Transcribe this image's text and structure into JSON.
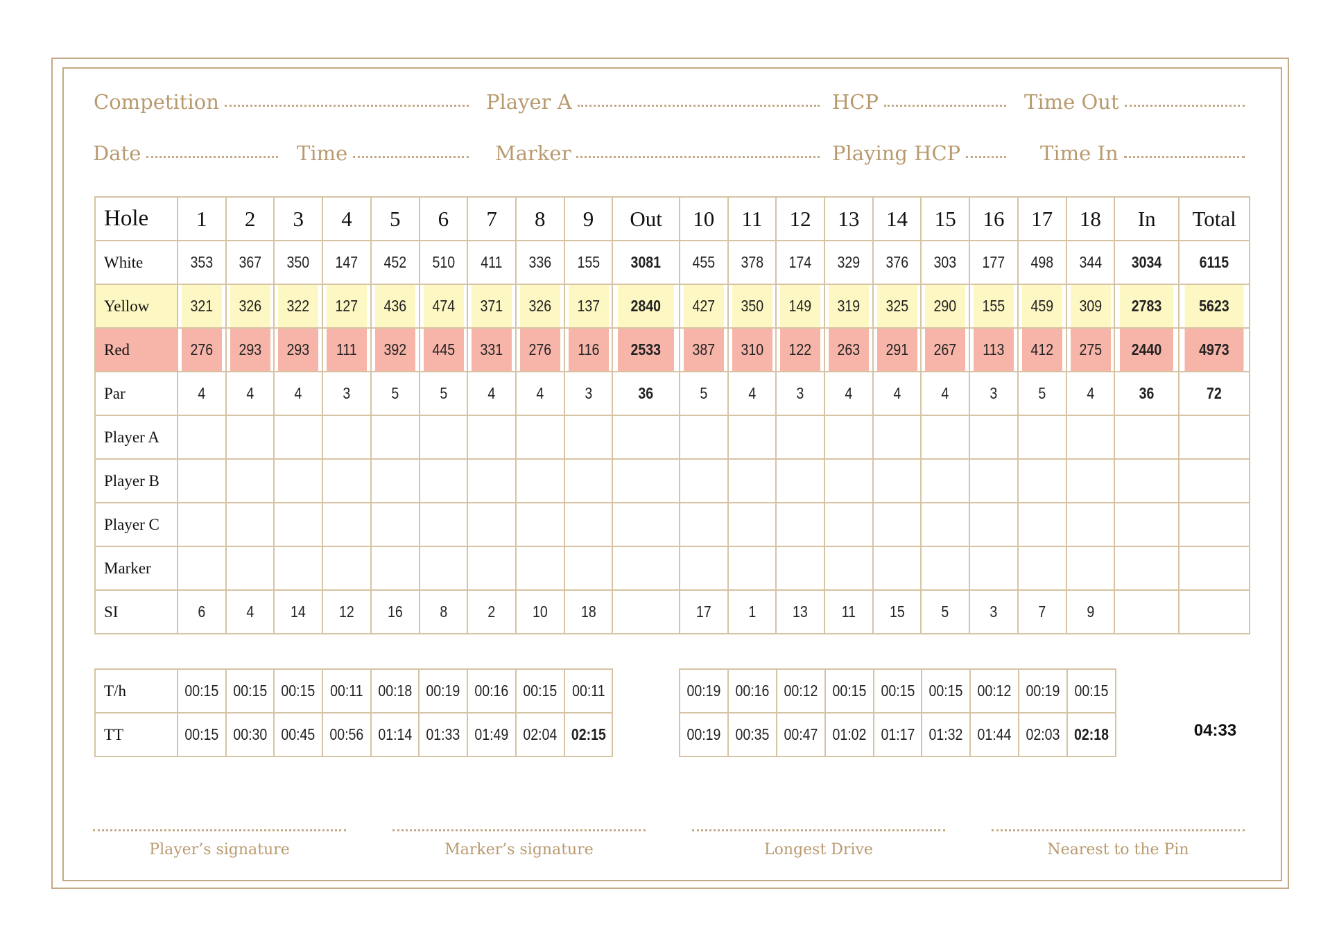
{
  "header_fields": {
    "competition": "Competition",
    "player_a": "Player A",
    "hcp": "HCP",
    "time_out": "Time Out",
    "date": "Date",
    "time": "Time",
    "marker": "Marker",
    "playing_hcp": "Playing HCP",
    "time_in": "Time In"
  },
  "scorecard": {
    "header": [
      "Hole",
      "1",
      "2",
      "3",
      "4",
      "5",
      "6",
      "7",
      "8",
      "9",
      "Out",
      "10",
      "11",
      "12",
      "13",
      "14",
      "15",
      "16",
      "17",
      "18",
      "In",
      "Total"
    ],
    "rows": [
      {
        "label": "White",
        "cls": "white",
        "values": [
          "353",
          "367",
          "350",
          "147",
          "452",
          "510",
          "411",
          "336",
          "155",
          "3081",
          "455",
          "378",
          "174",
          "329",
          "376",
          "303",
          "177",
          "498",
          "344",
          "3034",
          "6115"
        ]
      },
      {
        "label": "Yellow",
        "cls": "yellow",
        "values": [
          "321",
          "326",
          "322",
          "127",
          "436",
          "474",
          "371",
          "326",
          "137",
          "2840",
          "427",
          "350",
          "149",
          "319",
          "325",
          "290",
          "155",
          "459",
          "309",
          "2783",
          "5623"
        ]
      },
      {
        "label": "Red",
        "cls": "red",
        "values": [
          "276",
          "293",
          "293",
          "111",
          "392",
          "445",
          "331",
          "276",
          "116",
          "2533",
          "387",
          "310",
          "122",
          "263",
          "291",
          "267",
          "113",
          "412",
          "275",
          "2440",
          "4973"
        ]
      },
      {
        "label": "Par",
        "cls": "par",
        "values": [
          "4",
          "4",
          "4",
          "3",
          "5",
          "5",
          "4",
          "4",
          "3",
          "36",
          "5",
          "4",
          "3",
          "4",
          "4",
          "4",
          "3",
          "5",
          "4",
          "36",
          "72"
        ]
      },
      {
        "label": "Player A",
        "cls": "player",
        "values": [
          "",
          "",
          "",
          "",
          "",
          "",
          "",
          "",
          "",
          "",
          "",
          "",
          "",
          "",
          "",
          "",
          "",
          "",
          "",
          "",
          ""
        ]
      },
      {
        "label": "Player B",
        "cls": "player",
        "values": [
          "",
          "",
          "",
          "",
          "",
          "",
          "",
          "",
          "",
          "",
          "",
          "",
          "",
          "",
          "",
          "",
          "",
          "",
          "",
          "",
          ""
        ]
      },
      {
        "label": "Player C",
        "cls": "player",
        "values": [
          "",
          "",
          "",
          "",
          "",
          "",
          "",
          "",
          "",
          "",
          "",
          "",
          "",
          "",
          "",
          "",
          "",
          "",
          "",
          "",
          ""
        ]
      },
      {
        "label": "Marker",
        "cls": "player",
        "values": [
          "",
          "",
          "",
          "",
          "",
          "",
          "",
          "",
          "",
          "",
          "",
          "",
          "",
          "",
          "",
          "",
          "",
          "",
          "",
          "",
          ""
        ]
      },
      {
        "label": "SI",
        "cls": "si",
        "values": [
          "6",
          "4",
          "14",
          "12",
          "16",
          "8",
          "2",
          "10",
          "18",
          "",
          "17",
          "1",
          "13",
          "11",
          "15",
          "5",
          "3",
          "7",
          "9",
          "",
          ""
        ]
      }
    ]
  },
  "timing": {
    "front": [
      {
        "label": "T/h",
        "values": [
          "00:15",
          "00:15",
          "00:15",
          "00:11",
          "00:18",
          "00:19",
          "00:16",
          "00:15",
          "00:11"
        ]
      },
      {
        "label": "TT",
        "values": [
          "00:15",
          "00:30",
          "00:45",
          "00:56",
          "01:14",
          "01:33",
          "01:49",
          "02:04",
          "02:15"
        ]
      }
    ],
    "back": [
      {
        "values": [
          "00:19",
          "00:16",
          "00:12",
          "00:15",
          "00:15",
          "00:15",
          "00:12",
          "00:19",
          "00:15"
        ]
      },
      {
        "values": [
          "00:19",
          "00:35",
          "00:47",
          "01:02",
          "01:17",
          "01:32",
          "01:44",
          "02:03",
          "02:18"
        ]
      }
    ],
    "total_time": "04:33"
  },
  "signatures": [
    "Player’s signature",
    "Marker’s signature",
    "Longest Drive",
    "Nearest to the Pin"
  ],
  "colors": {
    "gold": "#b89a6e",
    "yellow": "#fdf8c3",
    "red": "#f7b4a9",
    "border": "#d6c3a3"
  }
}
